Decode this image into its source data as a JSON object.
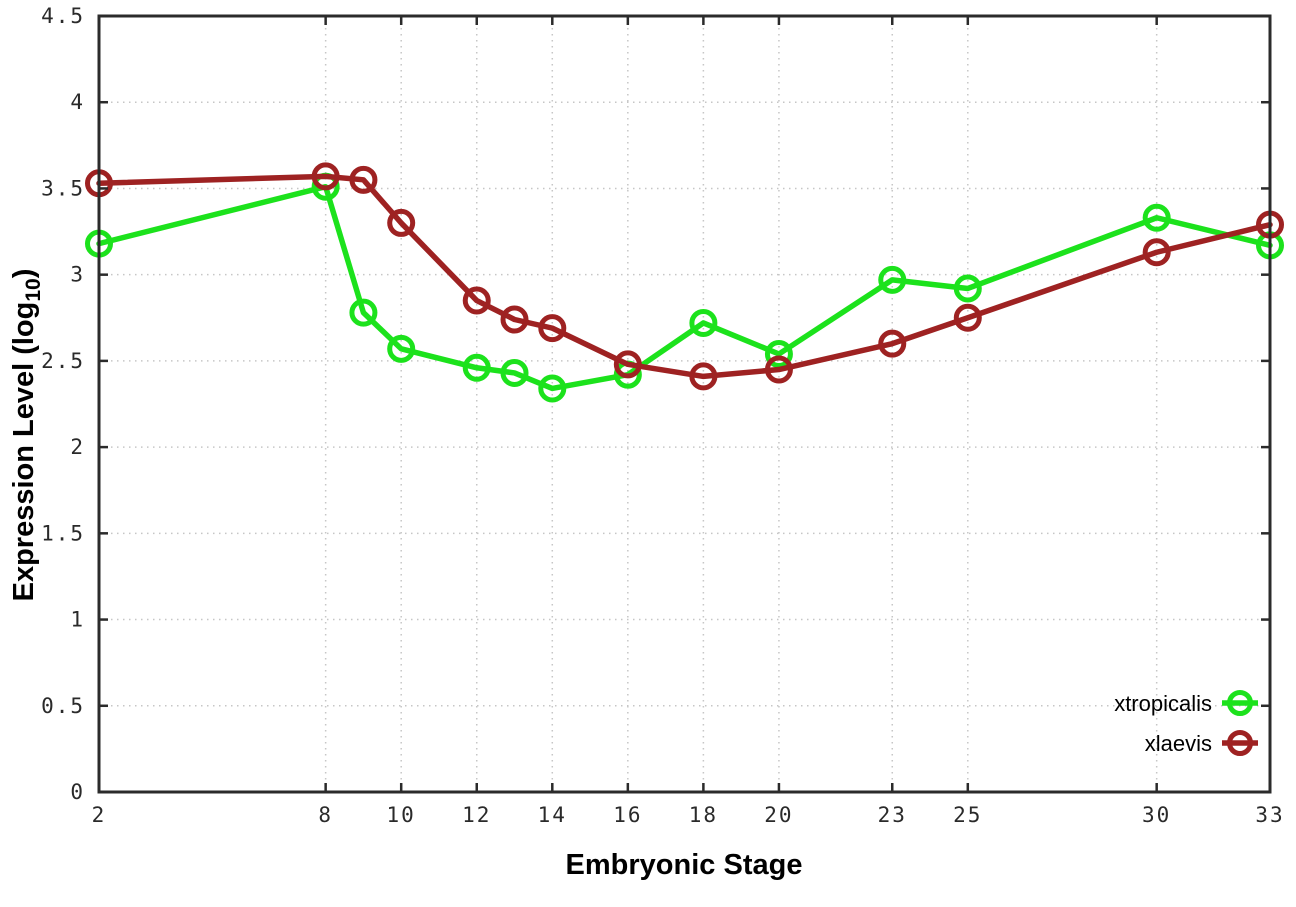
{
  "figure": {
    "background": "#ffffff",
    "border_color": "#2b2b2b",
    "grid_color": "#c6c6c6",
    "tick_color": "#2a2a2a"
  },
  "chart_data": {
    "type": "line",
    "title": "",
    "xlabel": "Embryonic Stage",
    "ylabel": "Expression Level (log10)",
    "ylabel_parts": {
      "main": "Expression Level (log",
      "sub": "10",
      "end": ")"
    },
    "x": [
      2,
      8,
      9,
      10,
      12,
      13,
      14,
      16,
      18,
      20,
      23,
      25,
      30,
      33
    ],
    "x_tick_labels": [
      "2",
      "8",
      "10",
      "12",
      "14",
      "16",
      "18",
      "20",
      "23",
      "25",
      "30",
      "33"
    ],
    "x_ticks": [
      2,
      8,
      10,
      12,
      14,
      16,
      18,
      20,
      23,
      25,
      30,
      33
    ],
    "xlim": [
      2,
      33
    ],
    "y_tick_labels": [
      "0",
      "0.5",
      "1",
      "1.5",
      "2",
      "2.5",
      "3",
      "3.5",
      "4",
      "4.5"
    ],
    "y_ticks": [
      0,
      0.5,
      1,
      1.5,
      2,
      2.5,
      3,
      3.5,
      4,
      4.5
    ],
    "ylim": [
      0,
      4.5
    ],
    "grid": true,
    "grid_style": "dotted",
    "legend_position": "bottom-right",
    "marker": "open-circle",
    "series": [
      {
        "name": "xtropicalis",
        "color": "#1ce21c",
        "values": [
          3.18,
          3.51,
          2.78,
          2.57,
          2.46,
          2.43,
          2.34,
          2.42,
          2.72,
          2.54,
          2.97,
          2.92,
          3.33,
          3.17
        ]
      },
      {
        "name": "xlaevis",
        "color": "#9e2222",
        "values": [
          3.53,
          3.57,
          3.55,
          3.3,
          2.85,
          2.74,
          2.69,
          2.48,
          2.41,
          2.45,
          2.6,
          2.75,
          3.13,
          3.29
        ]
      }
    ]
  }
}
